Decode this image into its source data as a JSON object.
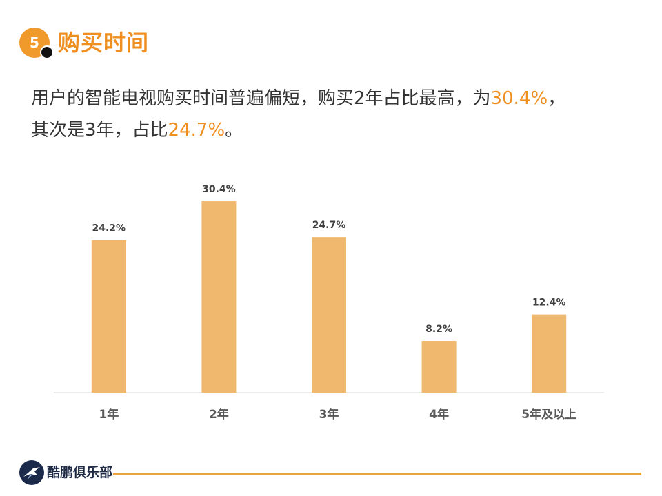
{
  "header": {
    "badge_number": "5",
    "title": "购买时间"
  },
  "summary": {
    "line1_text": "用户的智能电视购买时间普遍偏短，购买2年占比最高，为",
    "line1_highlight": "30.4%",
    "line1_end": "，",
    "line2_text": "其次是3年，占比",
    "line2_highlight": "24.7%",
    "line2_end": "。"
  },
  "colors": {
    "accent": "#ee8f1f",
    "bar": "#f0b86e",
    "text": "#333333",
    "footer_line": "#e8a33a"
  },
  "chart_data": {
    "type": "bar",
    "categories": [
      "1年",
      "2年",
      "3年",
      "4年",
      "5年及以上"
    ],
    "values": [
      24.2,
      30.4,
      24.7,
      8.2,
      12.4
    ],
    "value_labels": [
      "24.2%",
      "30.4%",
      "24.7%",
      "8.2%",
      "12.4%"
    ],
    "unit": "%",
    "ylim": [
      0,
      35
    ],
    "grid": false,
    "legend": "none"
  },
  "footer": {
    "brand": "酷鹏俱乐部",
    "logo_icon": "bird-logo-icon"
  }
}
